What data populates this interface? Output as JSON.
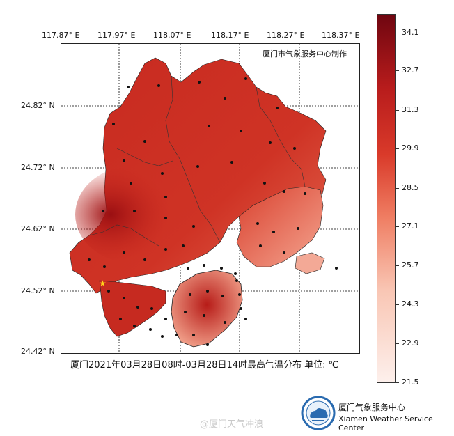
{
  "map": {
    "org_label": "厦门市气象服务中心制作",
    "caption": "厦门2021年03月28日08时-03月28日14时最高气温分布  单位: ℃",
    "lon_labels": [
      "117.87° E",
      "117.97° E",
      "118.07° E",
      "118.17° E",
      "118.27° E",
      "118.37° E"
    ],
    "lat_labels": [
      "24.82° N",
      "24.72° N",
      "24.62° N",
      "24.52° N",
      "24.42° N"
    ],
    "colors": {
      "low": "#fdf0ec",
      "mid": "#d93a2a",
      "high": "#6f0610",
      "land": "#c9271e"
    }
  },
  "colorbar": {
    "ticks": [
      "34.1",
      "32.7",
      "31.3",
      "29.9",
      "28.5",
      "27.1",
      "25.7",
      "24.3",
      "22.9",
      "21.5"
    ],
    "min": 21.5,
    "max": 34.1
  },
  "footer": {
    "cn": "厦门气象服务中心",
    "en": "Xiamen Weather Service Center",
    "watermark": "@厦门天气冲浪"
  }
}
